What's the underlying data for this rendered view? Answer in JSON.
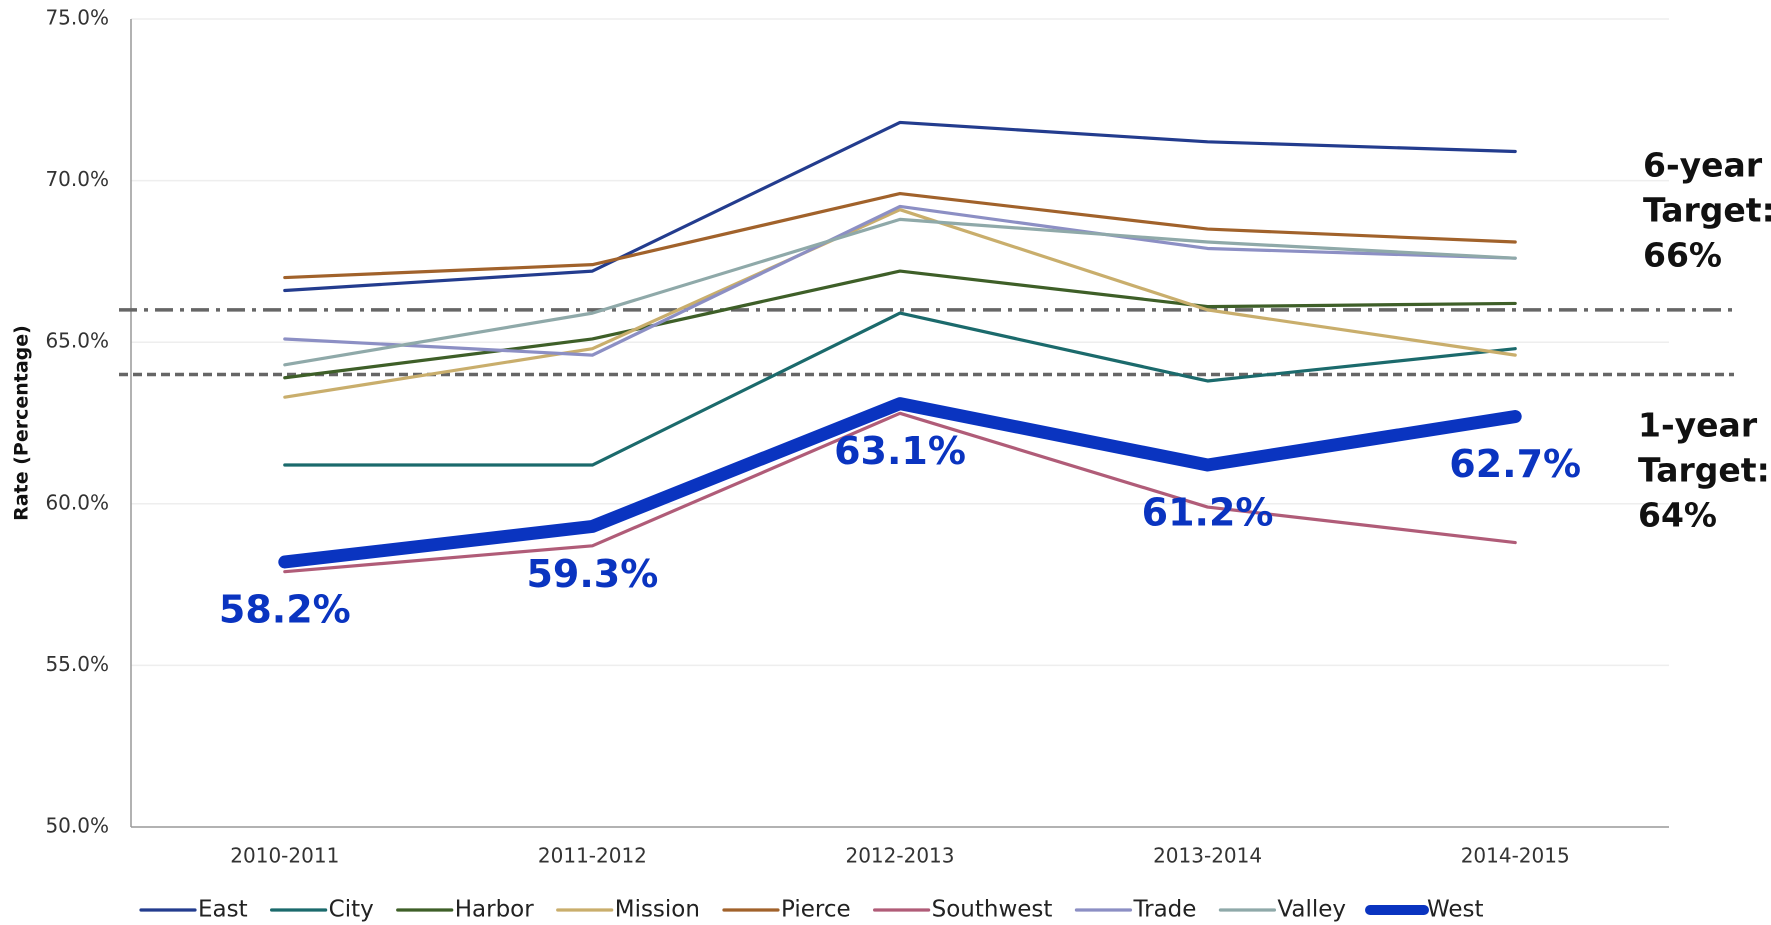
{
  "chart_data": {
    "type": "line",
    "y_label": "Rate (Percentage)",
    "categories": [
      "2010-2011",
      "2011-2012",
      "2012-2013",
      "2013-2014",
      "2014-2015"
    ],
    "ylim": [
      50,
      75
    ],
    "yticks": [
      {
        "value": 50,
        "label": "50.0%"
      },
      {
        "value": 55,
        "label": "55.0%"
      },
      {
        "value": 60,
        "label": "60.0%"
      },
      {
        "value": 65,
        "label": "65.0%"
      },
      {
        "value": 70,
        "label": "70.0%"
      },
      {
        "value": 75,
        "label": "75.0%"
      }
    ],
    "grid": true,
    "series": [
      {
        "name": "East",
        "color": "#233c8e",
        "values": [
          66.6,
          67.2,
          71.8,
          71.2,
          70.9
        ]
      },
      {
        "name": "City",
        "color": "#1b6a6c",
        "values": [
          61.2,
          61.2,
          65.9,
          63.8,
          64.8
        ]
      },
      {
        "name": "Harbor",
        "color": "#3e5f28",
        "values": [
          63.9,
          65.1,
          67.2,
          66.1,
          66.2
        ]
      },
      {
        "name": "Mission",
        "color": "#c9ae6c",
        "values": [
          63.3,
          64.8,
          69.1,
          66.0,
          64.6
        ]
      },
      {
        "name": "Pierce",
        "color": "#a1622b",
        "values": [
          67.0,
          67.4,
          69.6,
          68.5,
          68.1
        ]
      },
      {
        "name": "Southwest",
        "color": "#b05c78",
        "values": [
          57.9,
          58.7,
          62.8,
          59.9,
          58.8
        ]
      },
      {
        "name": "Trade",
        "color": "#8c8fc4",
        "values": [
          65.1,
          64.6,
          69.2,
          67.9,
          67.6
        ]
      },
      {
        "name": "Valley",
        "color": "#8fa9a9",
        "values": [
          64.3,
          65.9,
          68.8,
          68.1,
          67.6
        ]
      },
      {
        "name": "West",
        "color": "#0a34c0",
        "values": [
          58.2,
          59.3,
          63.1,
          61.2,
          62.7
        ],
        "value_labels": [
          "58.2%",
          "59.3%",
          "63.1%",
          "61.2%",
          "62.7%"
        ]
      }
    ],
    "targets": [
      {
        "value": 66,
        "label": [
          "6-year",
          "Target:",
          "66%"
        ]
      },
      {
        "value": 64,
        "label": [
          "1-year",
          "Target:",
          "64%"
        ]
      }
    ]
  }
}
